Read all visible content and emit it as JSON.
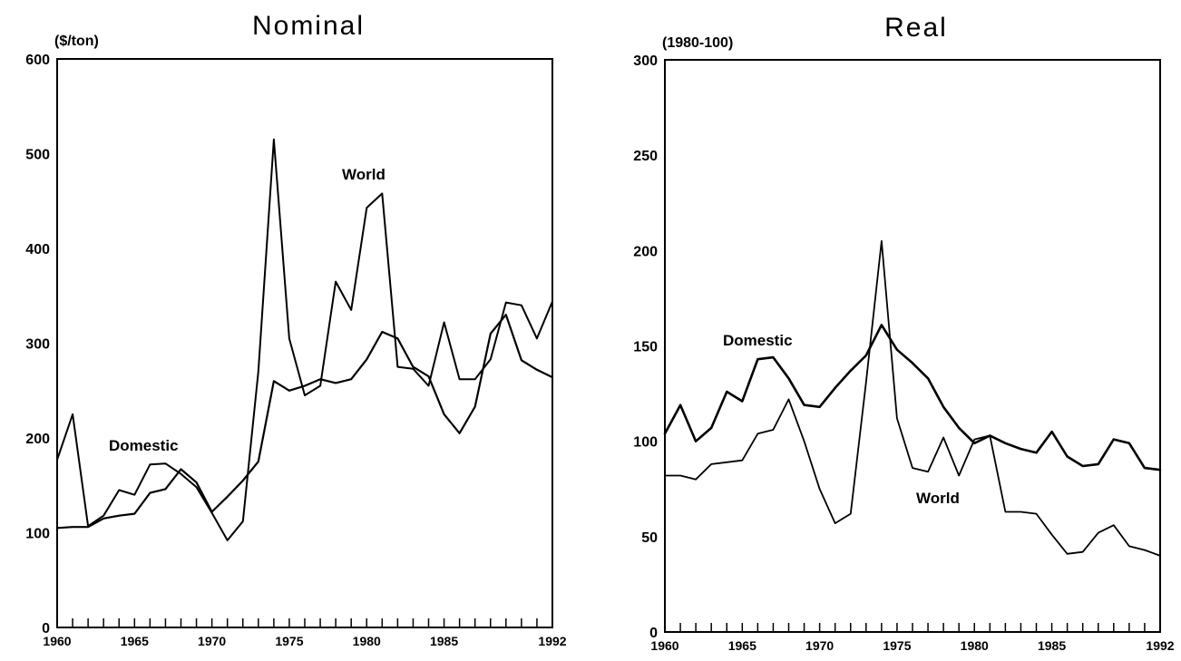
{
  "chart_data": [
    {
      "type": "line",
      "title": "Nominal",
      "unit_label": "($/ton)",
      "xlabel": "",
      "ylabel": "",
      "xlim": [
        1960,
        1992
      ],
      "ylim": [
        0,
        600
      ],
      "yticks": [
        0,
        100,
        200,
        300,
        400,
        500,
        600
      ],
      "xtick_labels": [
        {
          "x": 1960,
          "label": "1960"
        },
        {
          "x": 1965,
          "label": "1965"
        },
        {
          "x": 1970,
          "label": "1970"
        },
        {
          "x": 1975,
          "label": "1975"
        },
        {
          "x": 1980,
          "label": "1980"
        },
        {
          "x": 1985,
          "label": "1985"
        },
        {
          "x": 1992,
          "label": "1992"
        }
      ],
      "grid": false,
      "x": [
        1960,
        1961,
        1962,
        1963,
        1964,
        1965,
        1966,
        1967,
        1968,
        1969,
        1970,
        1971,
        1972,
        1973,
        1974,
        1975,
        1976,
        1977,
        1978,
        1979,
        1980,
        1981,
        1982,
        1983,
        1984,
        1985,
        1986,
        1987,
        1988,
        1989,
        1990,
        1991,
        1992
      ],
      "series": [
        {
          "name": "Domestic",
          "values": [
            105,
            106,
            106,
            115,
            118,
            120,
            142,
            146,
            167,
            153,
            122,
            138,
            155,
            175,
            260,
            250,
            255,
            262,
            258,
            262,
            283,
            312,
            305,
            275,
            265,
            225,
            205,
            233,
            310,
            330,
            282,
            272,
            264
          ]
        },
        {
          "name": "World",
          "values": [
            177,
            225,
            107,
            118,
            145,
            140,
            172,
            173,
            162,
            148,
            121,
            92,
            112,
            270,
            515,
            305,
            245,
            255,
            365,
            335,
            443,
            458,
            275,
            273,
            255,
            322,
            262,
            262,
            283,
            343,
            340,
            305,
            344
          ]
        }
      ],
      "annotations": [
        {
          "text": "Domestic",
          "series": "Domestic"
        },
        {
          "text": "World",
          "series": "World"
        }
      ]
    },
    {
      "type": "line",
      "title": "Real",
      "unit_label": "(1980-100)",
      "xlabel": "",
      "ylabel": "",
      "xlim": [
        1960,
        1992
      ],
      "ylim": [
        0,
        300
      ],
      "yticks": [
        0,
        50,
        100,
        150,
        200,
        250,
        300
      ],
      "xtick_labels": [
        {
          "x": 1960,
          "label": "1960"
        },
        {
          "x": 1965,
          "label": "1965"
        },
        {
          "x": 1970,
          "label": "1970"
        },
        {
          "x": 1975,
          "label": "1975"
        },
        {
          "x": 1980,
          "label": "1980"
        },
        {
          "x": 1985,
          "label": "1985"
        },
        {
          "x": 1992,
          "label": "1992"
        }
      ],
      "grid": false,
      "x": [
        1960,
        1961,
        1962,
        1963,
        1964,
        1965,
        1966,
        1967,
        1968,
        1969,
        1970,
        1971,
        1972,
        1973,
        1974,
        1975,
        1976,
        1977,
        1978,
        1979,
        1980,
        1981,
        1982,
        1983,
        1984,
        1985,
        1986,
        1987,
        1988,
        1989,
        1990,
        1991,
        1992
      ],
      "series": [
        {
          "name": "Domestic",
          "values": [
            104,
            119,
            100,
            107,
            126,
            121,
            143,
            144,
            133,
            119,
            118,
            128,
            137,
            145,
            161,
            148,
            141,
            133,
            118,
            107,
            99,
            103,
            99,
            96,
            94,
            105,
            92,
            87,
            88,
            101,
            99,
            86,
            85
          ]
        },
        {
          "name": "World",
          "values": [
            82,
            82,
            80,
            88,
            89,
            90,
            104,
            106,
            122,
            100,
            75,
            57,
            62,
            131,
            205,
            112,
            86,
            84,
            102,
            82,
            101,
            103,
            63,
            63,
            62,
            51,
            41,
            42,
            52,
            56,
            45,
            43,
            40
          ]
        }
      ],
      "annotations": [
        {
          "text": "Domestic",
          "series": "Domestic"
        },
        {
          "text": "World",
          "series": "World"
        }
      ]
    }
  ]
}
